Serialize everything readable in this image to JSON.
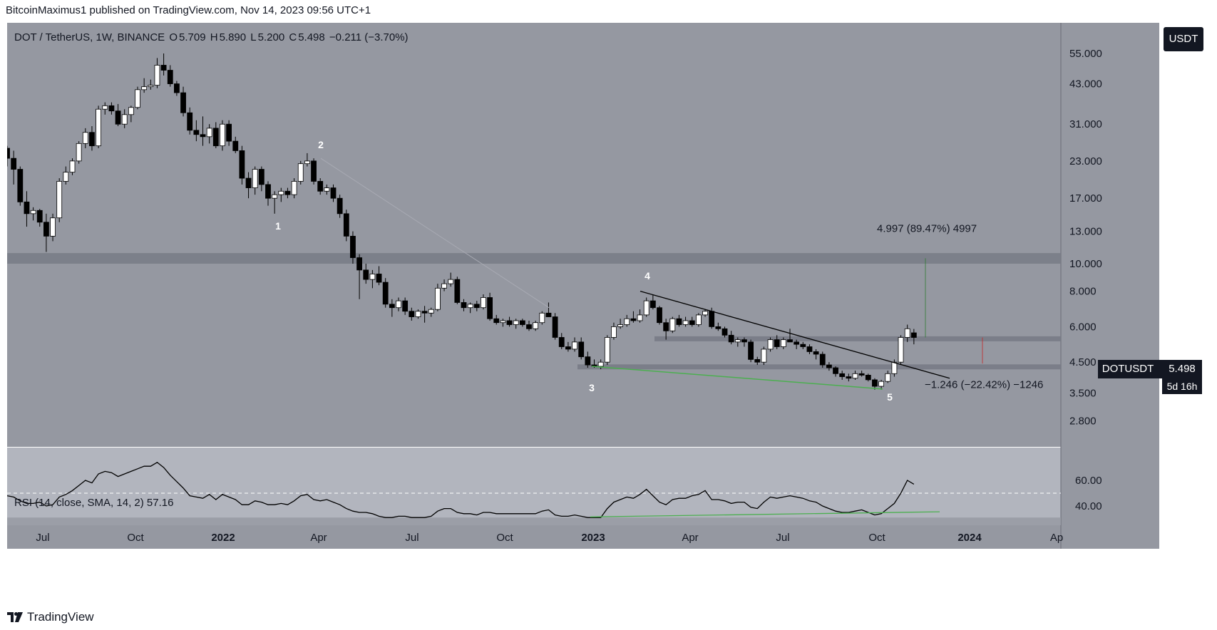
{
  "header": {
    "publisher_line": "BitcoinMaximus1 published on TradingView.com, Nov 14, 2023 09:56 UTC+1"
  },
  "legend": {
    "symbol": "DOT / TetherUS, 1W, BINANCE",
    "o_label": "O",
    "o_val": "5.709",
    "h_label": "H",
    "h_val": "5.890",
    "l_label": "L",
    "l_val": "5.200",
    "c_label": "C",
    "c_val": "5.498",
    "change": "−0.211 (−3.70%)"
  },
  "rsi_legend": {
    "text": "RSI (14, close, SMA, 14, 2)",
    "value": "57.16"
  },
  "currency_button": "USDT",
  "price_tag": {
    "symbol": "DOTUSDT",
    "value": "5.498",
    "countdown": "5d 16h"
  },
  "footer": {
    "brand": "TradingView"
  },
  "colors": {
    "background": "#9598a1",
    "rsi_background": "#b2b5be",
    "up": "#ffffff",
    "down": "#000000",
    "trend_green": "#4caf50",
    "zone": "#787b86"
  },
  "chart_data": {
    "type": "candlestick",
    "symbol": "DOT / TetherUS",
    "interval": "1W",
    "exchange": "BINANCE",
    "y_scale": "log",
    "y_ticks": [
      "55.000",
      "43.000",
      "31.000",
      "23.000",
      "17.000",
      "13.000",
      "10.000",
      "8.000",
      "6.000",
      "4.500",
      "3.500",
      "2.800"
    ],
    "x_ticks": [
      "Jul",
      "Oct",
      "2022",
      "Apr",
      "Jul",
      "Oct",
      "2023",
      "Apr",
      "Jul",
      "Oct",
      "2024",
      "Ap"
    ],
    "candles": [
      [
        25.5,
        26.0,
        22.0,
        23.5
      ],
      [
        23.5,
        25.0,
        19.0,
        21.5
      ],
      [
        21.5,
        22.0,
        16.0,
        16.5
      ],
      [
        16.5,
        18.0,
        13.5,
        15.0
      ],
      [
        15.0,
        15.8,
        14.2,
        15.4
      ],
      [
        15.4,
        15.6,
        13.5,
        14.0
      ],
      [
        14.0,
        15.0,
        11.0,
        12.5
      ],
      [
        12.5,
        15.0,
        12.0,
        14.5
      ],
      [
        14.5,
        20.0,
        14.0,
        19.5
      ],
      [
        19.5,
        22.0,
        19.0,
        21.0
      ],
      [
        21.0,
        23.5,
        20.5,
        23.0
      ],
      [
        23.0,
        27.0,
        22.5,
        26.5
      ],
      [
        26.5,
        30.0,
        25.5,
        29.0
      ],
      [
        29.0,
        30.5,
        25.0,
        26.0
      ],
      [
        26.0,
        36.0,
        25.5,
        35.0
      ],
      [
        35.0,
        37.0,
        33.5,
        36.0
      ],
      [
        36.0,
        37.0,
        33.5,
        34.5
      ],
      [
        34.5,
        36.5,
        30.5,
        31.0
      ],
      [
        31.0,
        35.0,
        30.0,
        33.5
      ],
      [
        33.5,
        36.0,
        31.5,
        35.5
      ],
      [
        35.5,
        42.0,
        35.0,
        41.0
      ],
      [
        41.0,
        45.0,
        40.0,
        42.0
      ],
      [
        42.0,
        44.5,
        41.0,
        42.5
      ],
      [
        42.5,
        53.0,
        41.5,
        50.0
      ],
      [
        50.0,
        55.0,
        46.0,
        48.0
      ],
      [
        48.0,
        50.0,
        42.0,
        43.0
      ],
      [
        43.0,
        44.0,
        39.0,
        40.0
      ],
      [
        40.0,
        42.0,
        33.0,
        34.0
      ],
      [
        34.0,
        35.5,
        28.5,
        29.5
      ],
      [
        29.5,
        32.0,
        27.0,
        28.5
      ],
      [
        28.5,
        33.0,
        26.0,
        28.0
      ],
      [
        28.0,
        31.0,
        26.5,
        30.0
      ],
      [
        30.0,
        31.5,
        25.5,
        26.0
      ],
      [
        26.0,
        32.0,
        25.0,
        31.0
      ],
      [
        31.0,
        32.0,
        26.0,
        27.0
      ],
      [
        27.0,
        28.0,
        24.5,
        25.0
      ],
      [
        25.0,
        26.0,
        19.0,
        20.0
      ],
      [
        20.0,
        21.0,
        17.0,
        18.5
      ],
      [
        18.5,
        22.0,
        17.5,
        21.5
      ],
      [
        21.5,
        22.0,
        18.0,
        19.0
      ],
      [
        19.0,
        19.5,
        16.0,
        17.0
      ],
      [
        17.0,
        18.0,
        15.0,
        17.5
      ],
      [
        17.5,
        18.5,
        16.5,
        18.0
      ],
      [
        18.0,
        18.5,
        17.0,
        17.5
      ],
      [
        17.5,
        20.0,
        17.0,
        19.5
      ],
      [
        19.5,
        23.0,
        19.0,
        22.5
      ],
      [
        22.5,
        24.5,
        22.0,
        23.0
      ],
      [
        23.0,
        23.5,
        19.0,
        19.5
      ],
      [
        19.5,
        20.0,
        17.5,
        18.0
      ],
      [
        18.0,
        19.0,
        17.5,
        18.5
      ],
      [
        18.5,
        19.0,
        16.5,
        17.0
      ],
      [
        17.0,
        17.5,
        14.5,
        15.0
      ],
      [
        15.0,
        15.5,
        12.0,
        12.5
      ],
      [
        12.5,
        13.0,
        10.0,
        10.5
      ],
      [
        10.5,
        10.8,
        7.5,
        9.5
      ],
      [
        9.5,
        10.0,
        8.5,
        8.8
      ],
      [
        8.8,
        9.5,
        8.2,
        9.2
      ],
      [
        9.2,
        9.8,
        8.4,
        8.6
      ],
      [
        8.6,
        8.9,
        7.0,
        7.2
      ],
      [
        7.2,
        7.5,
        6.5,
        7.0
      ],
      [
        7.0,
        7.6,
        6.8,
        7.4
      ],
      [
        7.4,
        7.6,
        6.6,
        6.8
      ],
      [
        6.8,
        7.0,
        6.3,
        6.5
      ],
      [
        6.5,
        6.9,
        6.4,
        6.8
      ],
      [
        6.8,
        7.1,
        6.2,
        6.7
      ],
      [
        6.7,
        7.0,
        6.5,
        6.9
      ],
      [
        6.9,
        8.5,
        6.8,
        8.2
      ],
      [
        8.2,
        8.8,
        8.0,
        8.5
      ],
      [
        8.5,
        9.3,
        8.3,
        8.8
      ],
      [
        8.8,
        9.0,
        7.2,
        7.3
      ],
      [
        7.3,
        7.5,
        6.8,
        7.0
      ],
      [
        7.0,
        7.3,
        6.7,
        7.2
      ],
      [
        7.2,
        7.4,
        6.8,
        7.0
      ],
      [
        7.0,
        7.8,
        6.9,
        7.6
      ],
      [
        7.6,
        7.9,
        6.3,
        6.4
      ],
      [
        6.4,
        6.6,
        6.1,
        6.2
      ],
      [
        6.2,
        6.4,
        6.0,
        6.3
      ],
      [
        6.3,
        6.5,
        6.0,
        6.1
      ],
      [
        6.1,
        6.4,
        5.9,
        6.3
      ],
      [
        6.3,
        6.4,
        6.0,
        6.1
      ],
      [
        6.1,
        6.3,
        5.8,
        5.9
      ],
      [
        5.9,
        6.3,
        5.8,
        6.2
      ],
      [
        6.2,
        6.8,
        6.1,
        6.7
      ],
      [
        6.7,
        7.3,
        6.5,
        6.5
      ],
      [
        6.5,
        6.7,
        5.4,
        5.5
      ],
      [
        5.5,
        5.7,
        5.0,
        5.1
      ],
      [
        5.1,
        5.3,
        4.9,
        5.0
      ],
      [
        5.0,
        5.5,
        4.9,
        5.3
      ],
      [
        5.3,
        5.5,
        4.6,
        4.7
      ],
      [
        4.7,
        4.9,
        4.3,
        4.4
      ],
      [
        4.4,
        4.6,
        4.3,
        4.35
      ],
      [
        4.35,
        4.6,
        4.25,
        4.5
      ],
      [
        4.5,
        5.6,
        4.4,
        5.5
      ],
      [
        5.5,
        6.2,
        5.4,
        6.0
      ],
      [
        6.0,
        6.4,
        5.9,
        6.1
      ],
      [
        6.1,
        6.6,
        6.0,
        6.4
      ],
      [
        6.4,
        6.8,
        6.2,
        6.3
      ],
      [
        6.3,
        6.9,
        6.2,
        6.6
      ],
      [
        6.6,
        7.6,
        6.5,
        7.4
      ],
      [
        7.4,
        7.8,
        6.9,
        7.0
      ],
      [
        7.0,
        7.1,
        6.1,
        6.2
      ],
      [
        6.2,
        6.4,
        5.4,
        5.8
      ],
      [
        5.8,
        6.5,
        5.7,
        6.4
      ],
      [
        6.4,
        6.6,
        6.0,
        6.1
      ],
      [
        6.1,
        6.5,
        6.0,
        6.3
      ],
      [
        6.3,
        6.5,
        6.0,
        6.1
      ],
      [
        6.1,
        6.7,
        6.0,
        6.6
      ],
      [
        6.6,
        6.9,
        6.5,
        6.8
      ],
      [
        6.8,
        7.0,
        5.9,
        6.0
      ],
      [
        6.0,
        6.2,
        5.8,
        5.9
      ],
      [
        5.9,
        6.0,
        5.5,
        5.6
      ],
      [
        5.6,
        5.8,
        5.2,
        5.3
      ],
      [
        5.3,
        5.5,
        5.1,
        5.4
      ],
      [
        5.4,
        5.5,
        5.1,
        5.3
      ],
      [
        5.3,
        5.4,
        4.5,
        4.6
      ],
      [
        4.6,
        4.7,
        4.4,
        4.5
      ],
      [
        4.5,
        5.1,
        4.4,
        5.0
      ],
      [
        5.0,
        5.5,
        4.9,
        5.4
      ],
      [
        5.4,
        5.6,
        5.0,
        5.1
      ],
      [
        5.1,
        5.5,
        5.0,
        5.4
      ],
      [
        5.4,
        5.9,
        5.3,
        5.3
      ],
      [
        5.3,
        5.4,
        5.0,
        5.2
      ],
      [
        5.2,
        5.3,
        5.0,
        5.1
      ],
      [
        5.1,
        5.2,
        4.8,
        4.9
      ],
      [
        4.9,
        5.0,
        4.6,
        4.8
      ],
      [
        4.8,
        4.9,
        4.3,
        4.4
      ],
      [
        4.4,
        4.5,
        4.2,
        4.3
      ],
      [
        4.3,
        4.35,
        4.0,
        4.1
      ],
      [
        4.1,
        4.2,
        3.9,
        4.0
      ],
      [
        4.0,
        4.1,
        3.85,
        3.95
      ],
      [
        3.95,
        4.2,
        3.9,
        4.1
      ],
      [
        4.1,
        4.2,
        4.0,
        4.05
      ],
      [
        4.05,
        4.1,
        3.85,
        3.9
      ],
      [
        3.9,
        3.95,
        3.6,
        3.7
      ],
      [
        3.7,
        3.9,
        3.6,
        3.85
      ],
      [
        3.85,
        4.2,
        3.8,
        4.1
      ],
      [
        4.1,
        4.6,
        4.0,
        4.5
      ],
      [
        4.5,
        5.6,
        4.4,
        5.5
      ],
      [
        5.5,
        6.1,
        5.3,
        5.9
      ],
      [
        5.709,
        5.89,
        5.2,
        5.498
      ]
    ],
    "rsi_series": [
      48,
      47,
      44,
      42,
      42,
      43,
      40,
      41,
      47,
      49,
      52,
      56,
      60,
      58,
      65,
      67,
      66,
      63,
      65,
      67,
      69,
      71,
      71,
      74,
      70,
      64,
      59,
      54,
      48,
      47,
      46,
      49,
      45,
      49,
      47,
      45,
      41,
      41,
      44,
      43,
      41,
      41,
      42,
      41,
      44,
      48,
      49,
      45,
      44,
      45,
      43,
      41,
      38,
      36,
      35,
      35,
      34,
      32,
      31,
      31,
      32,
      32,
      31,
      31,
      31,
      32,
      36,
      38,
      38,
      35,
      34,
      34,
      33,
      35,
      35,
      34,
      34,
      34,
      34,
      34,
      34,
      34,
      36,
      37,
      33,
      32,
      32,
      33,
      32,
      31,
      31,
      31,
      38,
      43,
      45,
      47,
      46,
      49,
      53,
      48,
      43,
      41,
      45,
      46,
      46,
      48,
      49,
      52,
      45,
      45,
      44,
      42,
      43,
      43,
      39,
      38,
      43,
      47,
      46,
      47,
      48,
      47,
      46,
      44,
      43,
      40,
      38,
      36,
      35,
      35,
      36,
      37,
      35,
      33,
      34,
      38,
      42,
      50,
      60,
      57
    ],
    "rsi_ticks": [
      "60.00",
      "40.00"
    ],
    "annotations": {
      "wave_labels": [
        "1",
        "2",
        "3",
        "4",
        "5"
      ],
      "measure_up": "4.997 (89.47%) 4997",
      "measure_down": "−1.246 (−22.42%) −1246"
    }
  }
}
